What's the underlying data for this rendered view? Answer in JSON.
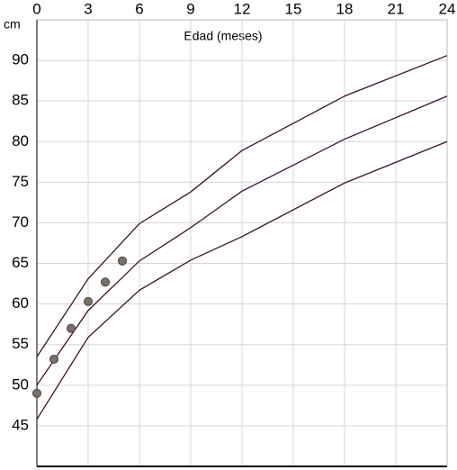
{
  "chart_data": {
    "type": "line",
    "x_label": "Edad (meses)",
    "y_label": "cm",
    "xlim": [
      0,
      24
    ],
    "xticks": [
      0,
      3,
      6,
      9,
      12,
      15,
      18,
      21,
      24
    ],
    "ylim": [
      40,
      95
    ],
    "yticks": [
      45,
      50,
      55,
      60,
      65,
      70,
      75,
      80,
      85,
      90
    ],
    "grid": true,
    "series": [
      {
        "color": "#3a1030",
        "x": [
          0,
          3,
          6,
          9,
          12,
          18,
          24
        ],
        "values": [
          53.5,
          63.1,
          69.9,
          73.8,
          78.9,
          85.6,
          90.6
        ]
      },
      {
        "color": "#3a1030",
        "x": [
          0,
          3,
          6,
          9,
          12,
          18,
          24
        ],
        "values": [
          50.0,
          59.2,
          65.3,
          69.4,
          73.9,
          80.3,
          85.6
        ]
      },
      {
        "color": "#3a1030",
        "x": [
          0,
          3,
          6,
          9,
          12,
          18,
          24
        ],
        "values": [
          45.8,
          55.9,
          61.7,
          65.4,
          68.3,
          74.9,
          80.0
        ]
      },
      {
        "color": "#7a7068",
        "markers_only": true,
        "x": [
          0,
          1,
          2,
          3,
          4,
          5
        ],
        "values": [
          49.0,
          53.2,
          57.0,
          60.3,
          62.7,
          65.3
        ]
      }
    ]
  }
}
